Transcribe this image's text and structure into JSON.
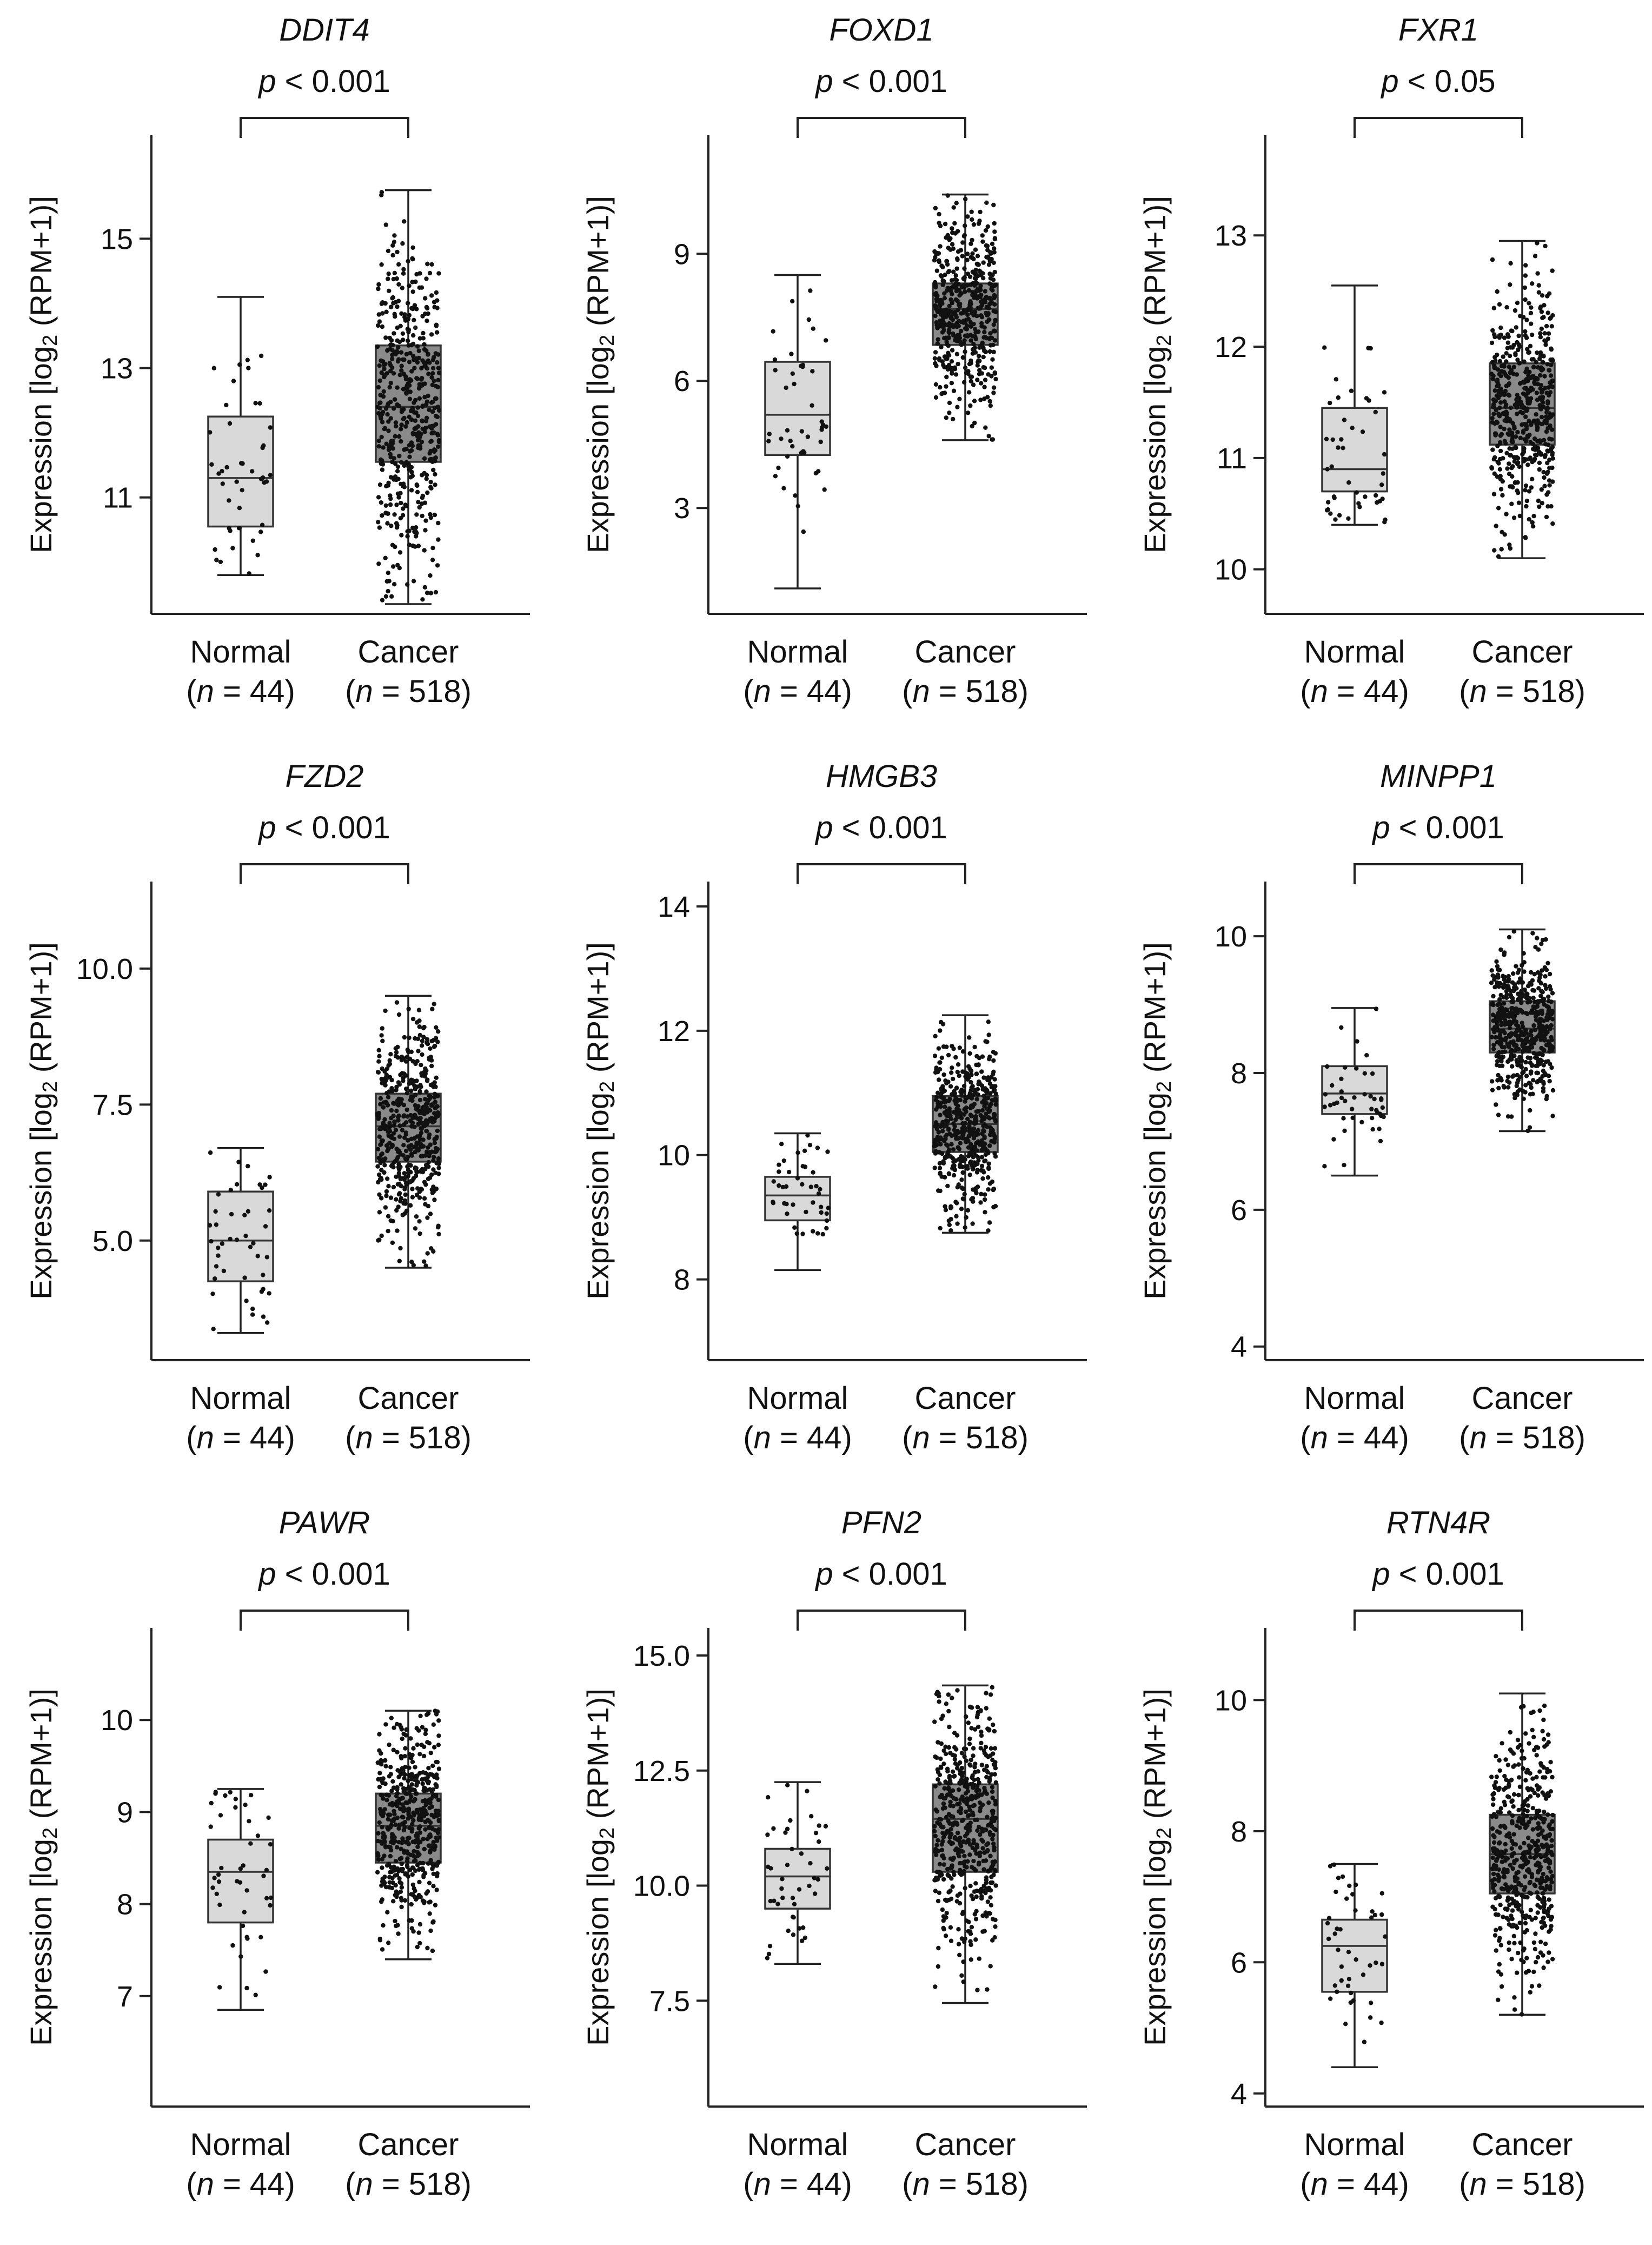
{
  "figure": {
    "panels": [
      {
        "gene": "DDIT4",
        "pvalue": "< 0.001",
        "ylabel_main": "Expression [log",
        "ylabel_sub": "2",
        "ylabel_tail": " (RPM+1)]",
        "ylim": [
          9.2,
          16.6
        ],
        "ticks": [
          "11",
          "13",
          "15"
        ]
      },
      {
        "gene": "FOXD1",
        "pvalue": "< 0.001",
        "ylabel_main": "Expression [log",
        "ylabel_sub": "2",
        "ylabel_tail": " (RPM+1)]",
        "ylim": [
          0.5,
          11.8
        ],
        "ticks": [
          "3",
          "6",
          "9"
        ]
      },
      {
        "gene": "FXR1",
        "pvalue": "< 0.05",
        "ylabel_main": "Expression [log",
        "ylabel_sub": "2",
        "ylabel_tail": " (RPM+1)]",
        "ylim": [
          9.6,
          13.9
        ],
        "ticks": [
          "10",
          "11",
          "12",
          "13"
        ]
      },
      {
        "gene": "FZD2",
        "pvalue": "< 0.001",
        "ylabel_main": "Expression [log",
        "ylabel_sub": "2",
        "ylabel_tail": " (RPM+1)]",
        "ylim": [
          2.8,
          11.6
        ],
        "ticks": [
          "5.0",
          "7.5",
          "10.0"
        ]
      },
      {
        "gene": "HMGB3",
        "pvalue": "< 0.001",
        "ylabel_main": "Expression [log",
        "ylabel_sub": "2",
        "ylabel_tail": " (RPM+1)]",
        "ylim": [
          6.7,
          14.4
        ],
        "ticks": [
          "8",
          "10",
          "12",
          "14"
        ]
      },
      {
        "gene": "MINPP1",
        "pvalue": "< 0.001",
        "ylabel_main": "Expression [log",
        "ylabel_sub": "2",
        "ylabel_tail": " (RPM+1)]",
        "ylim": [
          3.8,
          10.8
        ],
        "ticks": [
          "4",
          "6",
          "8",
          "10"
        ]
      },
      {
        "gene": "PAWR",
        "pvalue": "< 0.001",
        "ylabel_main": "Expression [log",
        "ylabel_sub": "2",
        "ylabel_tail": " (RPM+1)]",
        "ylim": [
          5.8,
          11.0
        ],
        "ticks": [
          "7",
          "8",
          "9",
          "10"
        ]
      },
      {
        "gene": "PFN2",
        "pvalue": "< 0.001",
        "ylabel_main": "Expression [log",
        "ylabel_sub": "2",
        "ylabel_tail": " (RPM+1)]",
        "ylim": [
          5.2,
          15.6
        ],
        "ticks": [
          "7.5",
          "10.0",
          "12.5",
          "15.0"
        ]
      },
      {
        "gene": "RTN4R",
        "pvalue": "< 0.001",
        "ylabel_main": "Expression [log",
        "ylabel_sub": "2",
        "ylabel_tail": " (RPM+1)]",
        "ylim": [
          3.8,
          11.1
        ],
        "ticks": [
          "4",
          "6",
          "8",
          "10"
        ]
      }
    ]
  },
  "chart_data": [
    {
      "type": "box",
      "title": "DDIT4",
      "annotation": "p < 0.001",
      "ylabel": "Expression [log2 (RPM+1)]",
      "ylim": [
        9.2,
        16.6
      ],
      "yticks": [
        11,
        13,
        15
      ],
      "categories": [
        "Normal",
        "Cancer"
      ],
      "n_labels": [
        "(n = 44)",
        "(n = 518)"
      ],
      "n": [
        44,
        518
      ],
      "boxes": [
        {
          "name": "Normal",
          "min": 9.8,
          "q1": 10.55,
          "median": 11.3,
          "q3": 12.25,
          "max": 14.1
        },
        {
          "name": "Cancer",
          "min": 9.35,
          "q1": 11.55,
          "median": 12.4,
          "q3": 13.35,
          "max": 15.75
        }
      ]
    },
    {
      "type": "box",
      "title": "FOXD1",
      "annotation": "p < 0.001",
      "ylabel": "Expression [log2 (RPM+1)]",
      "ylim": [
        0.5,
        11.8
      ],
      "yticks": [
        3,
        6,
        9
      ],
      "categories": [
        "Normal",
        "Cancer"
      ],
      "n_labels": [
        "(n = 44)",
        "(n = 518)"
      ],
      "n": [
        44,
        518
      ],
      "boxes": [
        {
          "name": "Normal",
          "min": 1.1,
          "q1": 4.25,
          "median": 5.2,
          "q3": 6.45,
          "max": 8.5
        },
        {
          "name": "Cancer",
          "min": 4.6,
          "q1": 6.85,
          "median": 7.7,
          "q3": 8.3,
          "max": 10.4
        }
      ]
    },
    {
      "type": "box",
      "title": "FXR1",
      "annotation": "p < 0.05",
      "ylabel": "Expression [log2 (RPM+1)]",
      "ylim": [
        9.6,
        13.9
      ],
      "yticks": [
        10,
        11,
        12,
        13
      ],
      "categories": [
        "Normal",
        "Cancer"
      ],
      "n_labels": [
        "(n = 44)",
        "(n = 518)"
      ],
      "n": [
        44,
        518
      ],
      "boxes": [
        {
          "name": "Normal",
          "min": 10.4,
          "q1": 10.7,
          "median": 10.9,
          "q3": 11.45,
          "max": 12.55
        },
        {
          "name": "Cancer",
          "min": 10.1,
          "q1": 11.12,
          "median": 11.45,
          "q3": 11.85,
          "max": 12.95
        }
      ]
    },
    {
      "type": "box",
      "title": "FZD2",
      "annotation": "p < 0.001",
      "ylabel": "Expression [log2 (RPM+1)]",
      "ylim": [
        2.8,
        11.6
      ],
      "yticks": [
        5.0,
        7.5,
        10.0
      ],
      "categories": [
        "Normal",
        "Cancer"
      ],
      "n_labels": [
        "(n = 44)",
        "(n = 518)"
      ],
      "n": [
        44,
        518
      ],
      "boxes": [
        {
          "name": "Normal",
          "min": 3.3,
          "q1": 4.25,
          "median": 5.0,
          "q3": 5.9,
          "max": 6.7
        },
        {
          "name": "Cancer",
          "min": 4.5,
          "q1": 6.45,
          "median": 7.1,
          "q3": 7.7,
          "max": 9.5
        }
      ]
    },
    {
      "type": "box",
      "title": "HMGB3",
      "annotation": "p < 0.001",
      "ylabel": "Expression [log2 (RPM+1)]",
      "ylim": [
        6.7,
        14.4
      ],
      "yticks": [
        8,
        10,
        12,
        14
      ],
      "categories": [
        "Normal",
        "Cancer"
      ],
      "n_labels": [
        "(n = 44)",
        "(n = 518)"
      ],
      "n": [
        44,
        518
      ],
      "boxes": [
        {
          "name": "Normal",
          "min": 8.15,
          "q1": 8.95,
          "median": 9.35,
          "q3": 9.65,
          "max": 10.35
        },
        {
          "name": "Cancer",
          "min": 8.75,
          "q1": 10.05,
          "median": 10.5,
          "q3": 10.95,
          "max": 12.25
        }
      ]
    },
    {
      "type": "box",
      "title": "MINPP1",
      "annotation": "p < 0.001",
      "ylabel": "Expression [log2 (RPM+1)]",
      "ylim": [
        3.8,
        10.8
      ],
      "yticks": [
        4,
        6,
        8,
        10
      ],
      "categories": [
        "Normal",
        "Cancer"
      ],
      "n_labels": [
        "(n = 44)",
        "(n = 518)"
      ],
      "n": [
        44,
        518
      ],
      "boxes": [
        {
          "name": "Normal",
          "min": 6.5,
          "q1": 7.4,
          "median": 7.7,
          "q3": 8.1,
          "max": 8.95
        },
        {
          "name": "Cancer",
          "min": 7.15,
          "q1": 8.3,
          "median": 8.65,
          "q3": 9.05,
          "max": 10.1
        }
      ]
    },
    {
      "type": "box",
      "title": "PAWR",
      "annotation": "p < 0.001",
      "ylabel": "Expression [log2 (RPM+1)]",
      "ylim": [
        5.8,
        11.0
      ],
      "yticks": [
        7,
        8,
        9,
        10
      ],
      "categories": [
        "Normal",
        "Cancer"
      ],
      "n_labels": [
        "(n = 44)",
        "(n = 518)"
      ],
      "n": [
        44,
        518
      ],
      "boxes": [
        {
          "name": "Normal",
          "min": 6.85,
          "q1": 7.8,
          "median": 8.35,
          "q3": 8.7,
          "max": 9.25
        },
        {
          "name": "Cancer",
          "min": 7.4,
          "q1": 8.45,
          "median": 8.85,
          "q3": 9.2,
          "max": 10.1
        }
      ]
    },
    {
      "type": "box",
      "title": "PFN2",
      "annotation": "p < 0.001",
      "ylabel": "Expression [log2 (RPM+1)]",
      "ylim": [
        5.2,
        15.6
      ],
      "yticks": [
        7.5,
        10.0,
        12.5,
        15.0
      ],
      "categories": [
        "Normal",
        "Cancer"
      ],
      "n_labels": [
        "(n = 44)",
        "(n = 518)"
      ],
      "n": [
        44,
        518
      ],
      "boxes": [
        {
          "name": "Normal",
          "min": 8.3,
          "q1": 9.5,
          "median": 10.2,
          "q3": 10.8,
          "max": 12.25
        },
        {
          "name": "Cancer",
          "min": 7.45,
          "q1": 10.3,
          "median": 11.45,
          "q3": 12.2,
          "max": 14.35
        }
      ]
    },
    {
      "type": "box",
      "title": "RTN4R",
      "annotation": "p < 0.001",
      "ylabel": "Expression [log2 (RPM+1)]",
      "ylim": [
        3.8,
        11.1
      ],
      "yticks": [
        4,
        6,
        8,
        10
      ],
      "categories": [
        "Normal",
        "Cancer"
      ],
      "n_labels": [
        "(n = 44)",
        "(n = 518)"
      ],
      "n": [
        44,
        518
      ],
      "boxes": [
        {
          "name": "Normal",
          "min": 4.4,
          "q1": 5.55,
          "median": 6.25,
          "q3": 6.65,
          "max": 7.5
        },
        {
          "name": "Cancer",
          "min": 5.2,
          "q1": 7.05,
          "median": 7.65,
          "q3": 8.25,
          "max": 10.1
        }
      ]
    }
  ],
  "colors": {
    "normal_box": "#d9d9d9",
    "cancer_box": "#8a8a8a",
    "dots": "#111111",
    "axis": "#222222"
  }
}
